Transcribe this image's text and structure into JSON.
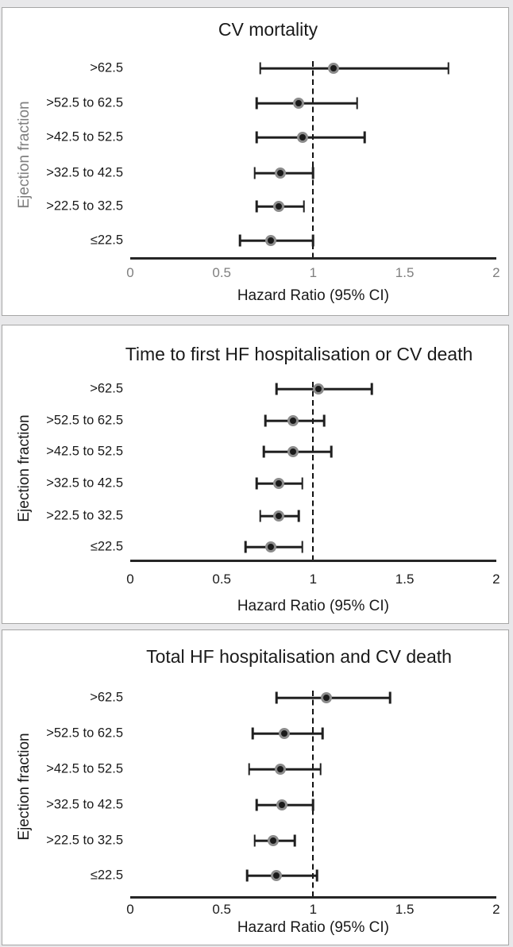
{
  "figure": {
    "description": "Forest plots of hazard ratios by ejection fraction subgroup",
    "x_axis_label": "Hazard Ratio (95% CI)",
    "y_axis_label": "Ejection fraction"
  },
  "colors": {
    "background": "#e8e8ea",
    "panel_background": "#ffffff",
    "panel_border": "#a6a6a6",
    "line": "#1f1f1f",
    "marker_core": "#1a1a1a",
    "marker_ring": "#8c8c8c",
    "text_black": "#1a1a1a",
    "text_gray": "#7f7f7f"
  },
  "chart_data": [
    {
      "type": "scatter",
      "title": "CV mortality",
      "xlabel": "Hazard Ratio (95% CI)",
      "ylabel": "Ejection fraction",
      "xlim": [
        0,
        2
      ],
      "xticks": [
        "0",
        "0.5",
        "1",
        "1.5",
        "2"
      ],
      "xtick_values": [
        0,
        0.5,
        1,
        1.5,
        2
      ],
      "refline_x": 1,
      "grid": false,
      "tick_text_gray": true,
      "categories": [
        ">62.5",
        ">52.5 to 62.5",
        ">42.5 to 52.5",
        ">32.5 to 42.5",
        ">22.5 to 32.5",
        "≤22.5"
      ],
      "points": [
        {
          "category": ">62.5",
          "hr": 1.11,
          "ci_low": 0.71,
          "ci_high": 1.74
        },
        {
          "category": ">52.5 to 62.5",
          "hr": 0.92,
          "ci_low": 0.69,
          "ci_high": 1.24
        },
        {
          "category": ">42.5 to 52.5",
          "hr": 0.94,
          "ci_low": 0.69,
          "ci_high": 1.28
        },
        {
          "category": ">32.5 to 42.5",
          "hr": 0.82,
          "ci_low": 0.68,
          "ci_high": 1.0
        },
        {
          "category": ">22.5 to 32.5",
          "hr": 0.81,
          "ci_low": 0.69,
          "ci_high": 0.95
        },
        {
          "category": "≤22.5",
          "hr": 0.77,
          "ci_low": 0.6,
          "ci_high": 1.0
        }
      ]
    },
    {
      "type": "scatter",
      "title": "Time to first HF hospitalisation or CV death",
      "xlabel": "Hazard Ratio (95% CI)",
      "ylabel": "Ejection fraction",
      "xlim": [
        0,
        2
      ],
      "xticks": [
        "0",
        "0.5",
        "1",
        "1.5",
        "2"
      ],
      "xtick_values": [
        0,
        0.5,
        1,
        1.5,
        2
      ],
      "refline_x": 1,
      "grid": false,
      "tick_text_gray": false,
      "categories": [
        ">62.5",
        ">52.5 to 62.5",
        ">42.5 to 52.5",
        ">32.5 to 42.5",
        ">22.5 to 32.5",
        "≤22.5"
      ],
      "points": [
        {
          "category": ">62.5",
          "hr": 1.03,
          "ci_low": 0.8,
          "ci_high": 1.32
        },
        {
          "category": ">52.5 to 62.5",
          "hr": 0.89,
          "ci_low": 0.74,
          "ci_high": 1.06
        },
        {
          "category": ">42.5 to 52.5",
          "hr": 0.89,
          "ci_low": 0.73,
          "ci_high": 1.1
        },
        {
          "category": ">32.5 to 42.5",
          "hr": 0.81,
          "ci_low": 0.69,
          "ci_high": 0.94
        },
        {
          "category": ">22.5 to 32.5",
          "hr": 0.81,
          "ci_low": 0.71,
          "ci_high": 0.92
        },
        {
          "category": "≤22.5",
          "hr": 0.77,
          "ci_low": 0.63,
          "ci_high": 0.94
        }
      ]
    },
    {
      "type": "scatter",
      "title": "Total HF hospitalisation and CV death",
      "xlabel": "Hazard Ratio (95% CI)",
      "ylabel": "Ejection fraction",
      "xlim": [
        0,
        2
      ],
      "xticks": [
        "0",
        "0.5",
        "1",
        "1.5",
        "2"
      ],
      "xtick_values": [
        0,
        0.5,
        1,
        1.5,
        2
      ],
      "refline_x": 1,
      "grid": false,
      "tick_text_gray": false,
      "categories": [
        ">62.5",
        ">52.5 to 62.5",
        ">42.5 to 52.5",
        ">32.5 to 42.5",
        ">22.5 to 32.5",
        "≤22.5"
      ],
      "points": [
        {
          "category": ">62.5",
          "hr": 1.07,
          "ci_low": 0.8,
          "ci_high": 1.42
        },
        {
          "category": ">52.5 to 62.5",
          "hr": 0.84,
          "ci_low": 0.67,
          "ci_high": 1.05
        },
        {
          "category": ">42.5 to 52.5",
          "hr": 0.82,
          "ci_low": 0.65,
          "ci_high": 1.04
        },
        {
          "category": ">32.5 to 42.5",
          "hr": 0.83,
          "ci_low": 0.69,
          "ci_high": 1.0
        },
        {
          "category": ">22.5 to 32.5",
          "hr": 0.78,
          "ci_low": 0.68,
          "ci_high": 0.9
        },
        {
          "category": "≤22.5",
          "hr": 0.8,
          "ci_low": 0.64,
          "ci_high": 1.02
        }
      ]
    }
  ]
}
